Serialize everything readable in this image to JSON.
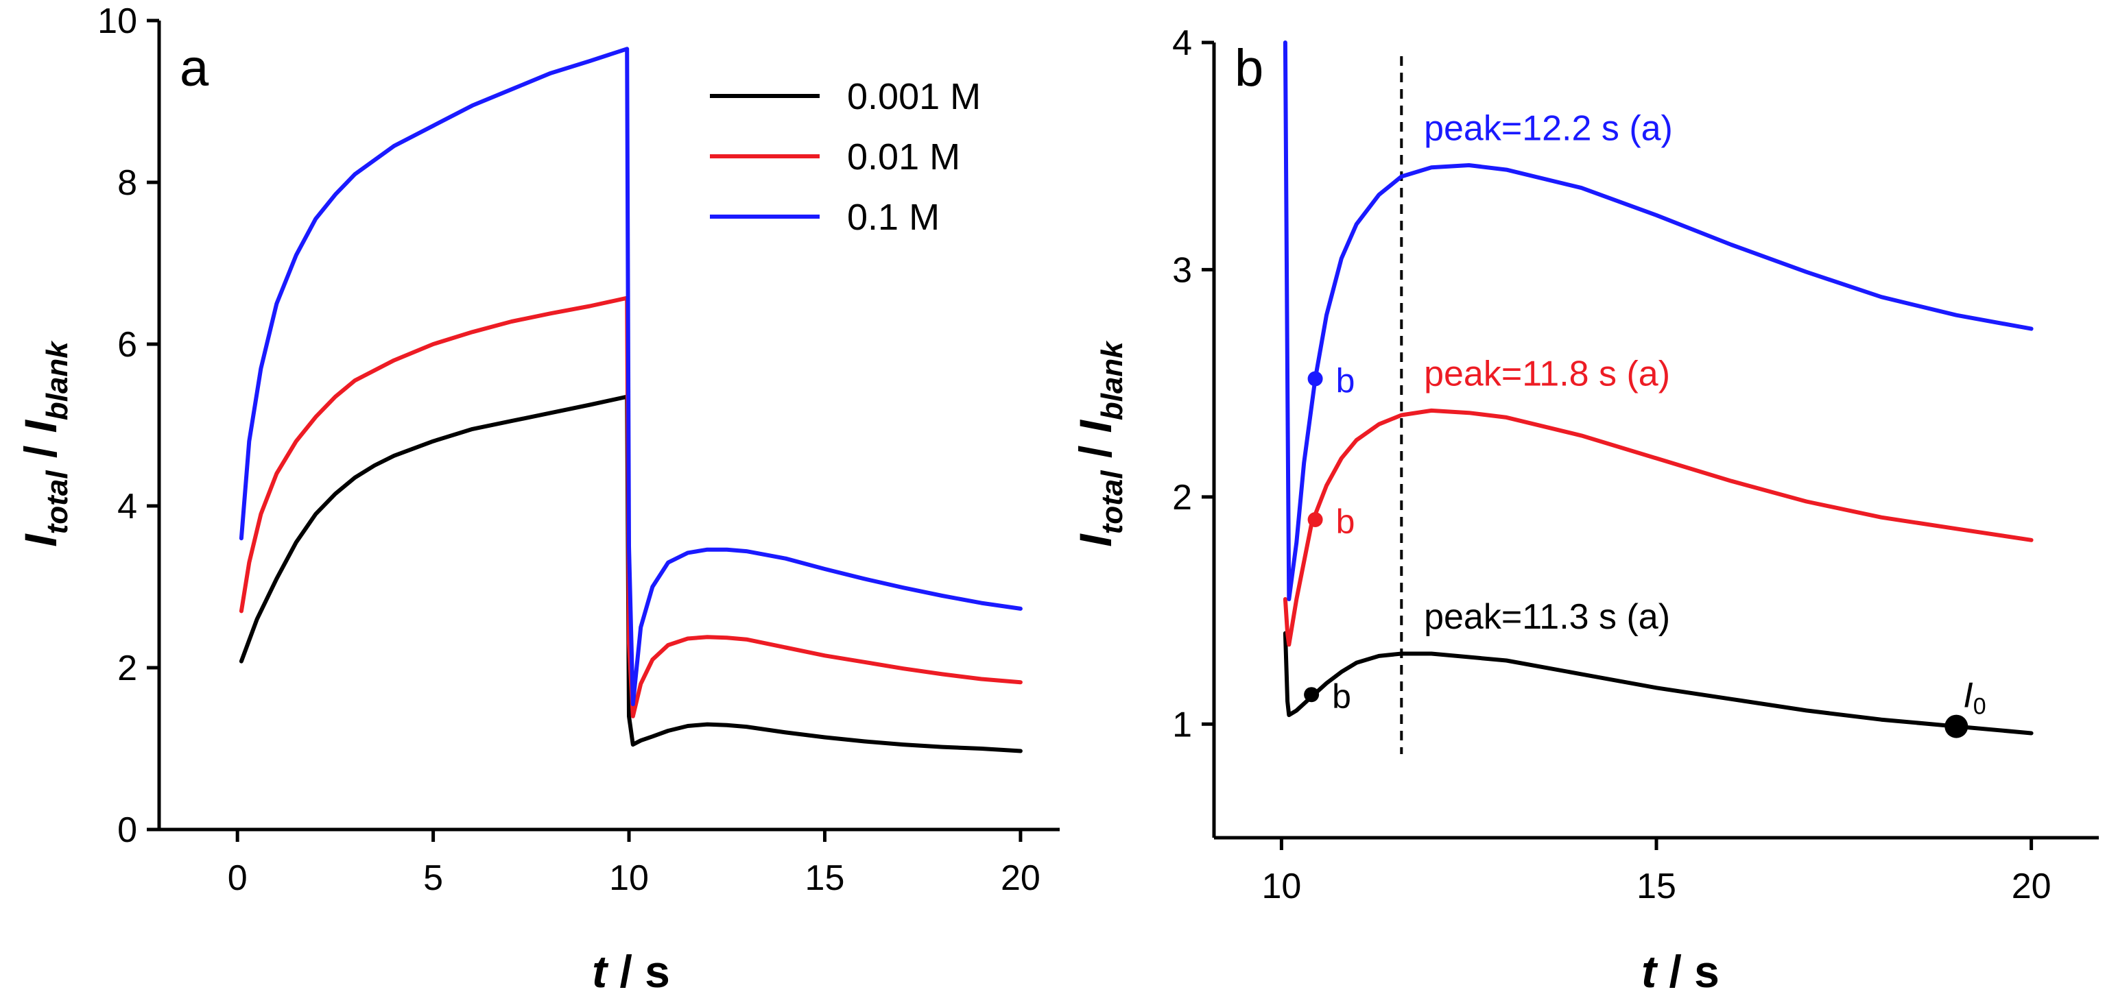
{
  "chart_data": [
    {
      "type": "line",
      "panel_label": "a",
      "xlabel": {
        "var": "t",
        "rest": " / s"
      },
      "ylabel": {
        "var": "I",
        "sub1": "total",
        "slash": " / ",
        "var2": "I",
        "sub2": "blank"
      },
      "xlim": [
        -2,
        21
      ],
      "ylim": [
        0,
        10
      ],
      "xticks": [
        0,
        5,
        10,
        15,
        20
      ],
      "yticks": [
        0,
        2,
        4,
        6,
        8,
        10
      ],
      "legend_position": "top-right",
      "series": [
        {
          "name": "0.001 M",
          "color": "#000000",
          "x": [
            0.1,
            0.5,
            1,
            1.5,
            2,
            2.5,
            3,
            3.5,
            4,
            5,
            6,
            7,
            8,
            9,
            9.95,
            10.0,
            10.1,
            10.3,
            10.6,
            11,
            11.5,
            12,
            12.5,
            13,
            14,
            15,
            16,
            17,
            18,
            19,
            20
          ],
          "y": [
            2.08,
            2.6,
            3.1,
            3.55,
            3.9,
            4.15,
            4.35,
            4.5,
            4.62,
            4.8,
            4.95,
            5.05,
            5.15,
            5.25,
            5.35,
            1.4,
            1.05,
            1.1,
            1.15,
            1.22,
            1.28,
            1.3,
            1.29,
            1.27,
            1.2,
            1.14,
            1.09,
            1.05,
            1.02,
            1.0,
            0.97
          ]
        },
        {
          "name": "0.01 M",
          "color": "#ed1c24",
          "x": [
            0.1,
            0.3,
            0.6,
            1,
            1.5,
            2,
            2.5,
            3,
            4,
            5,
            6,
            7,
            8,
            9,
            9.95,
            10.0,
            10.1,
            10.3,
            10.6,
            11,
            11.5,
            12,
            12.5,
            13,
            14,
            15,
            16,
            17,
            18,
            19,
            20
          ],
          "y": [
            2.7,
            3.3,
            3.9,
            4.4,
            4.8,
            5.1,
            5.35,
            5.55,
            5.8,
            6.0,
            6.15,
            6.28,
            6.38,
            6.47,
            6.57,
            2.3,
            1.4,
            1.8,
            2.1,
            2.28,
            2.36,
            2.38,
            2.37,
            2.35,
            2.25,
            2.15,
            2.07,
            1.99,
            1.92,
            1.86,
            1.82
          ]
        },
        {
          "name": "0.1 M",
          "color": "#1a1aff",
          "x": [
            0.1,
            0.3,
            0.6,
            1,
            1.5,
            2,
            2.5,
            3,
            4,
            5,
            6,
            7,
            8,
            9,
            9.95,
            10.0,
            10.1,
            10.3,
            10.6,
            11,
            11.5,
            12,
            12.5,
            13,
            14,
            15,
            16,
            17,
            18,
            19,
            20
          ],
          "y": [
            3.6,
            4.8,
            5.7,
            6.5,
            7.1,
            7.55,
            7.85,
            8.1,
            8.45,
            8.7,
            8.95,
            9.15,
            9.35,
            9.5,
            9.65,
            3.5,
            1.55,
            2.5,
            3.0,
            3.3,
            3.42,
            3.46,
            3.46,
            3.44,
            3.35,
            3.22,
            3.1,
            2.99,
            2.89,
            2.8,
            2.73
          ]
        }
      ]
    },
    {
      "type": "line",
      "panel_label": "b",
      "xlabel": {
        "var": "t",
        "rest": " / s"
      },
      "ylabel": {
        "var": "I",
        "sub1": "total",
        "slash": " / ",
        "var2": "I",
        "sub2": "blank"
      },
      "xlim": [
        9.1,
        20.9
      ],
      "ylim": [
        0.5,
        4
      ],
      "xticks": [
        10,
        15,
        20
      ],
      "yticks": [
        1,
        2,
        3,
        4
      ],
      "vline_x": 11.6,
      "series": [
        {
          "name": "0.001 M",
          "color": "#000000",
          "x": [
            10.05,
            10.08,
            10.1,
            10.2,
            10.4,
            10.6,
            10.8,
            11,
            11.3,
            11.6,
            12,
            13,
            14,
            15,
            16,
            17,
            18,
            19,
            20
          ],
          "y": [
            1.4,
            1.1,
            1.04,
            1.06,
            1.12,
            1.18,
            1.23,
            1.27,
            1.3,
            1.31,
            1.31,
            1.28,
            1.22,
            1.16,
            1.11,
            1.06,
            1.02,
            0.99,
            0.96
          ],
          "peak_label": "peak=11.3 s (a)",
          "peak_label_pos": [
            11.9,
            1.42
          ],
          "b_point": {
            "x": 10.4,
            "y": 1.13,
            "label": "b"
          }
        },
        {
          "name": "0.01 M",
          "color": "#ed1c24",
          "x": [
            10.05,
            10.08,
            10.1,
            10.2,
            10.4,
            10.6,
            10.8,
            11,
            11.3,
            11.6,
            12,
            12.5,
            13,
            14,
            15,
            16,
            17,
            18,
            19,
            20
          ],
          "y": [
            1.55,
            1.4,
            1.35,
            1.55,
            1.88,
            2.05,
            2.17,
            2.25,
            2.32,
            2.36,
            2.38,
            2.37,
            2.35,
            2.27,
            2.17,
            2.07,
            1.98,
            1.91,
            1.86,
            1.81
          ],
          "peak_label": "peak=11.8 s (a)",
          "peak_label_pos": [
            11.9,
            2.49
          ],
          "b_point": {
            "x": 10.45,
            "y": 1.9,
            "label": "b"
          }
        },
        {
          "name": "0.1 M",
          "color": "#1a1aff",
          "x": [
            10.05,
            10.08,
            10.1,
            10.2,
            10.3,
            10.45,
            10.6,
            10.8,
            11,
            11.3,
            11.6,
            12,
            12.5,
            13,
            14,
            15,
            16,
            17,
            18,
            19,
            20
          ],
          "y": [
            4.0,
            2.5,
            1.55,
            1.8,
            2.15,
            2.52,
            2.8,
            3.05,
            3.2,
            3.33,
            3.41,
            3.45,
            3.46,
            3.44,
            3.36,
            3.24,
            3.11,
            2.99,
            2.88,
            2.8,
            2.74
          ],
          "peak_label": "peak=12.2 s (a)",
          "peak_label_pos": [
            11.9,
            3.57
          ],
          "b_point": {
            "x": 10.45,
            "y": 2.52,
            "label": "b"
          }
        }
      ],
      "marker": {
        "x": 19.0,
        "y": 0.99,
        "label_var": "I",
        "label_sub": "0"
      }
    }
  ]
}
